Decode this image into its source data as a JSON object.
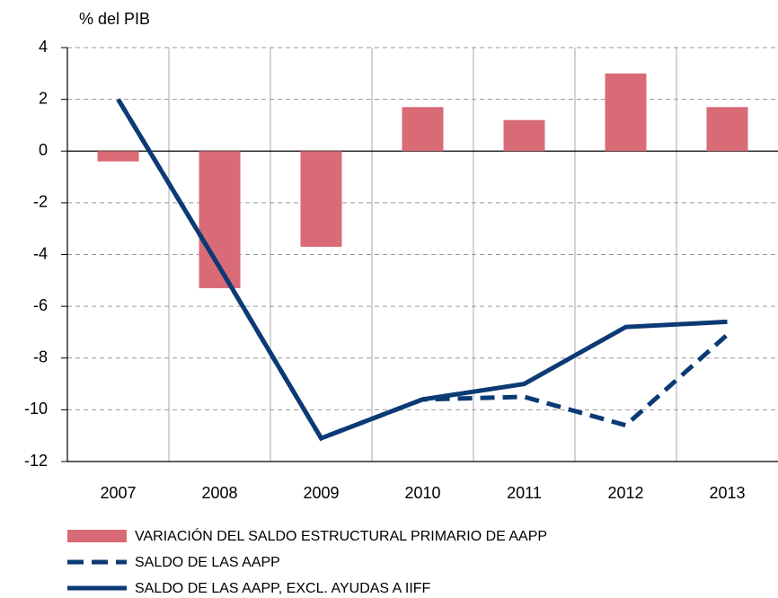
{
  "chart_data": {
    "type": "combo",
    "y_label": "% del PIB",
    "categories": [
      "2007",
      "2008",
      "2009",
      "2010",
      "2011",
      "2012",
      "2013"
    ],
    "series": [
      {
        "name": "VARIACIÓN DEL SALDO ESTRUCTURAL PRIMARIO DE AAPP",
        "type": "bar",
        "color": "#d96b77",
        "values": [
          -0.4,
          -5.3,
          -3.7,
          1.7,
          1.2,
          3.0,
          1.7
        ]
      },
      {
        "name": "SALDO DE LAS  AAPP",
        "type": "line",
        "dash": true,
        "color": "#0b3a75",
        "values": [
          2.0,
          -4.5,
          -11.1,
          -9.6,
          -9.5,
          -10.6,
          -7.1
        ]
      },
      {
        "name": "SALDO DE LAS AAPP, EXCL. AYUDAS A IIFF",
        "type": "line",
        "dash": false,
        "color": "#0b3a75",
        "values": [
          2.0,
          -4.5,
          -11.1,
          -9.6,
          -9.0,
          -6.8,
          -6.6
        ]
      }
    ],
    "ylim": [
      -12,
      4
    ],
    "yticks": [
      -12,
      -10,
      -8,
      -6,
      -4,
      -2,
      0,
      2,
      4
    ],
    "grid": true
  }
}
